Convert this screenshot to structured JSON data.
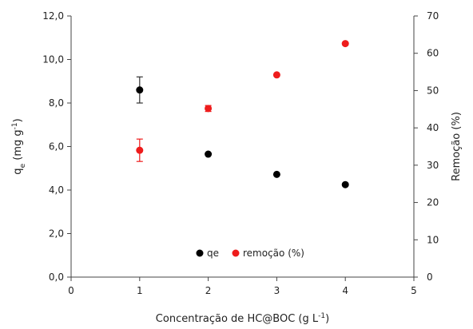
{
  "chart_data": {
    "type": "scatter",
    "x": [
      1,
      2,
      3,
      4
    ],
    "series": [
      {
        "name": "qe",
        "axis": "left",
        "color": "#000000",
        "values": [
          8.6,
          5.65,
          4.72,
          4.25
        ],
        "errors": [
          0.6,
          0,
          0,
          0
        ]
      },
      {
        "name": "remoção (%)",
        "axis": "right",
        "color": "#ee1c1c",
        "values": [
          34.0,
          45.2,
          54.2,
          62.6
        ],
        "errors": [
          3.0,
          0.8,
          0,
          0
        ]
      }
    ],
    "xlabel_parts": [
      "Concentração  de HC@BOC  (g L",
      "-1",
      ")"
    ],
    "ylabel_left_parts": [
      "q",
      "e",
      " (mg g",
      "-1",
      ")"
    ],
    "ylabel_right": "Remoção (%)",
    "xlim": [
      0,
      5
    ],
    "ylim_left": [
      0,
      12
    ],
    "ylim_right": [
      0,
      70
    ],
    "xticks": [
      "0",
      "1",
      "2",
      "3",
      "4",
      "5"
    ],
    "yticks_left": [
      "0,0",
      "2,0",
      "4,0",
      "6,0",
      "8,0",
      "10,0",
      "12,0"
    ],
    "yticks_right": [
      "0",
      "10",
      "20",
      "30",
      "40",
      "50",
      "60",
      "70"
    ],
    "legend_position": "bottom-center",
    "grid": false
  }
}
